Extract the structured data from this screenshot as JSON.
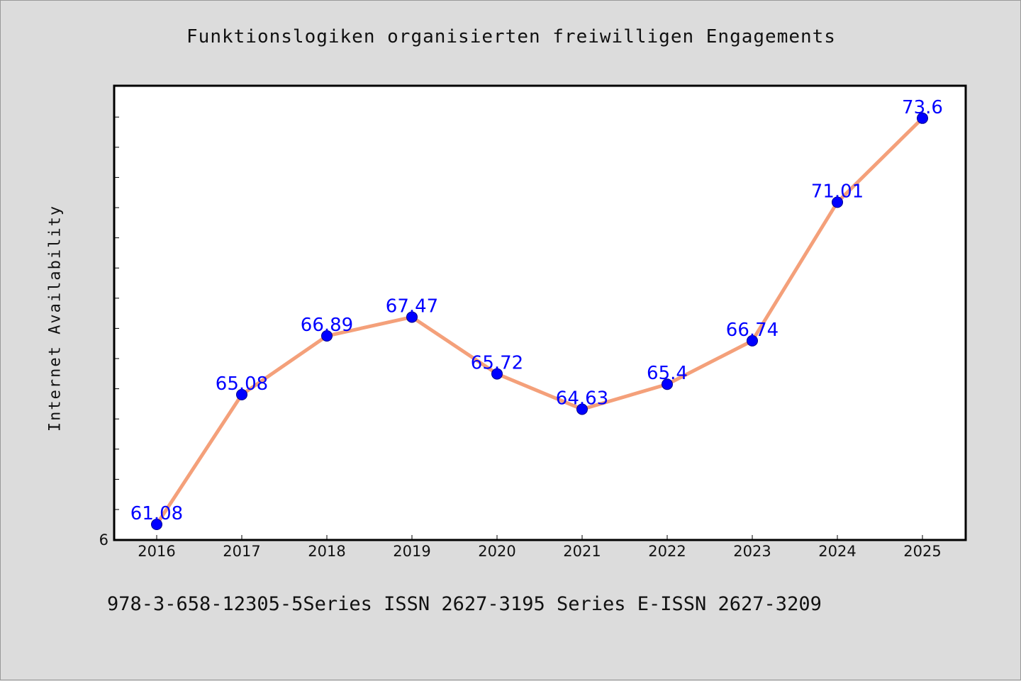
{
  "chart_data": {
    "type": "line",
    "title": "Funktionslogiken organisierten freiwilligen Engagements",
    "xlabel": "",
    "ylabel": "Internet Availability",
    "categories": [
      "2016",
      "2017",
      "2018",
      "2019",
      "2020",
      "2021",
      "2022",
      "2023",
      "2024",
      "2025"
    ],
    "series": [
      {
        "values": [
          61.08,
          65.08,
          66.89,
          67.47,
          65.72,
          64.63,
          65.4,
          66.74,
          71.01,
          73.6
        ],
        "data_labels": [
          "61.08",
          "65.08",
          "66.89",
          "67.47",
          "65.72",
          "64.63",
          "65.4",
          "66.74",
          "71.01",
          "73.6"
        ],
        "line_color": "#f4a07a",
        "marker_color": "#0000ff",
        "label_color": "#0000ff"
      }
    ],
    "ylim": [
      60.6,
      74.6
    ],
    "y_tick_labels": [
      "6"
    ],
    "grid": false,
    "legend": "none"
  },
  "footer": {
    "text": "978-3-658-12305-5Series ISSN 2627-3195 Series E-ISSN 2627-3209"
  },
  "colors": {
    "background": "#dcdcdc",
    "plot_background": "#ffffff",
    "axis": "#000000"
  }
}
